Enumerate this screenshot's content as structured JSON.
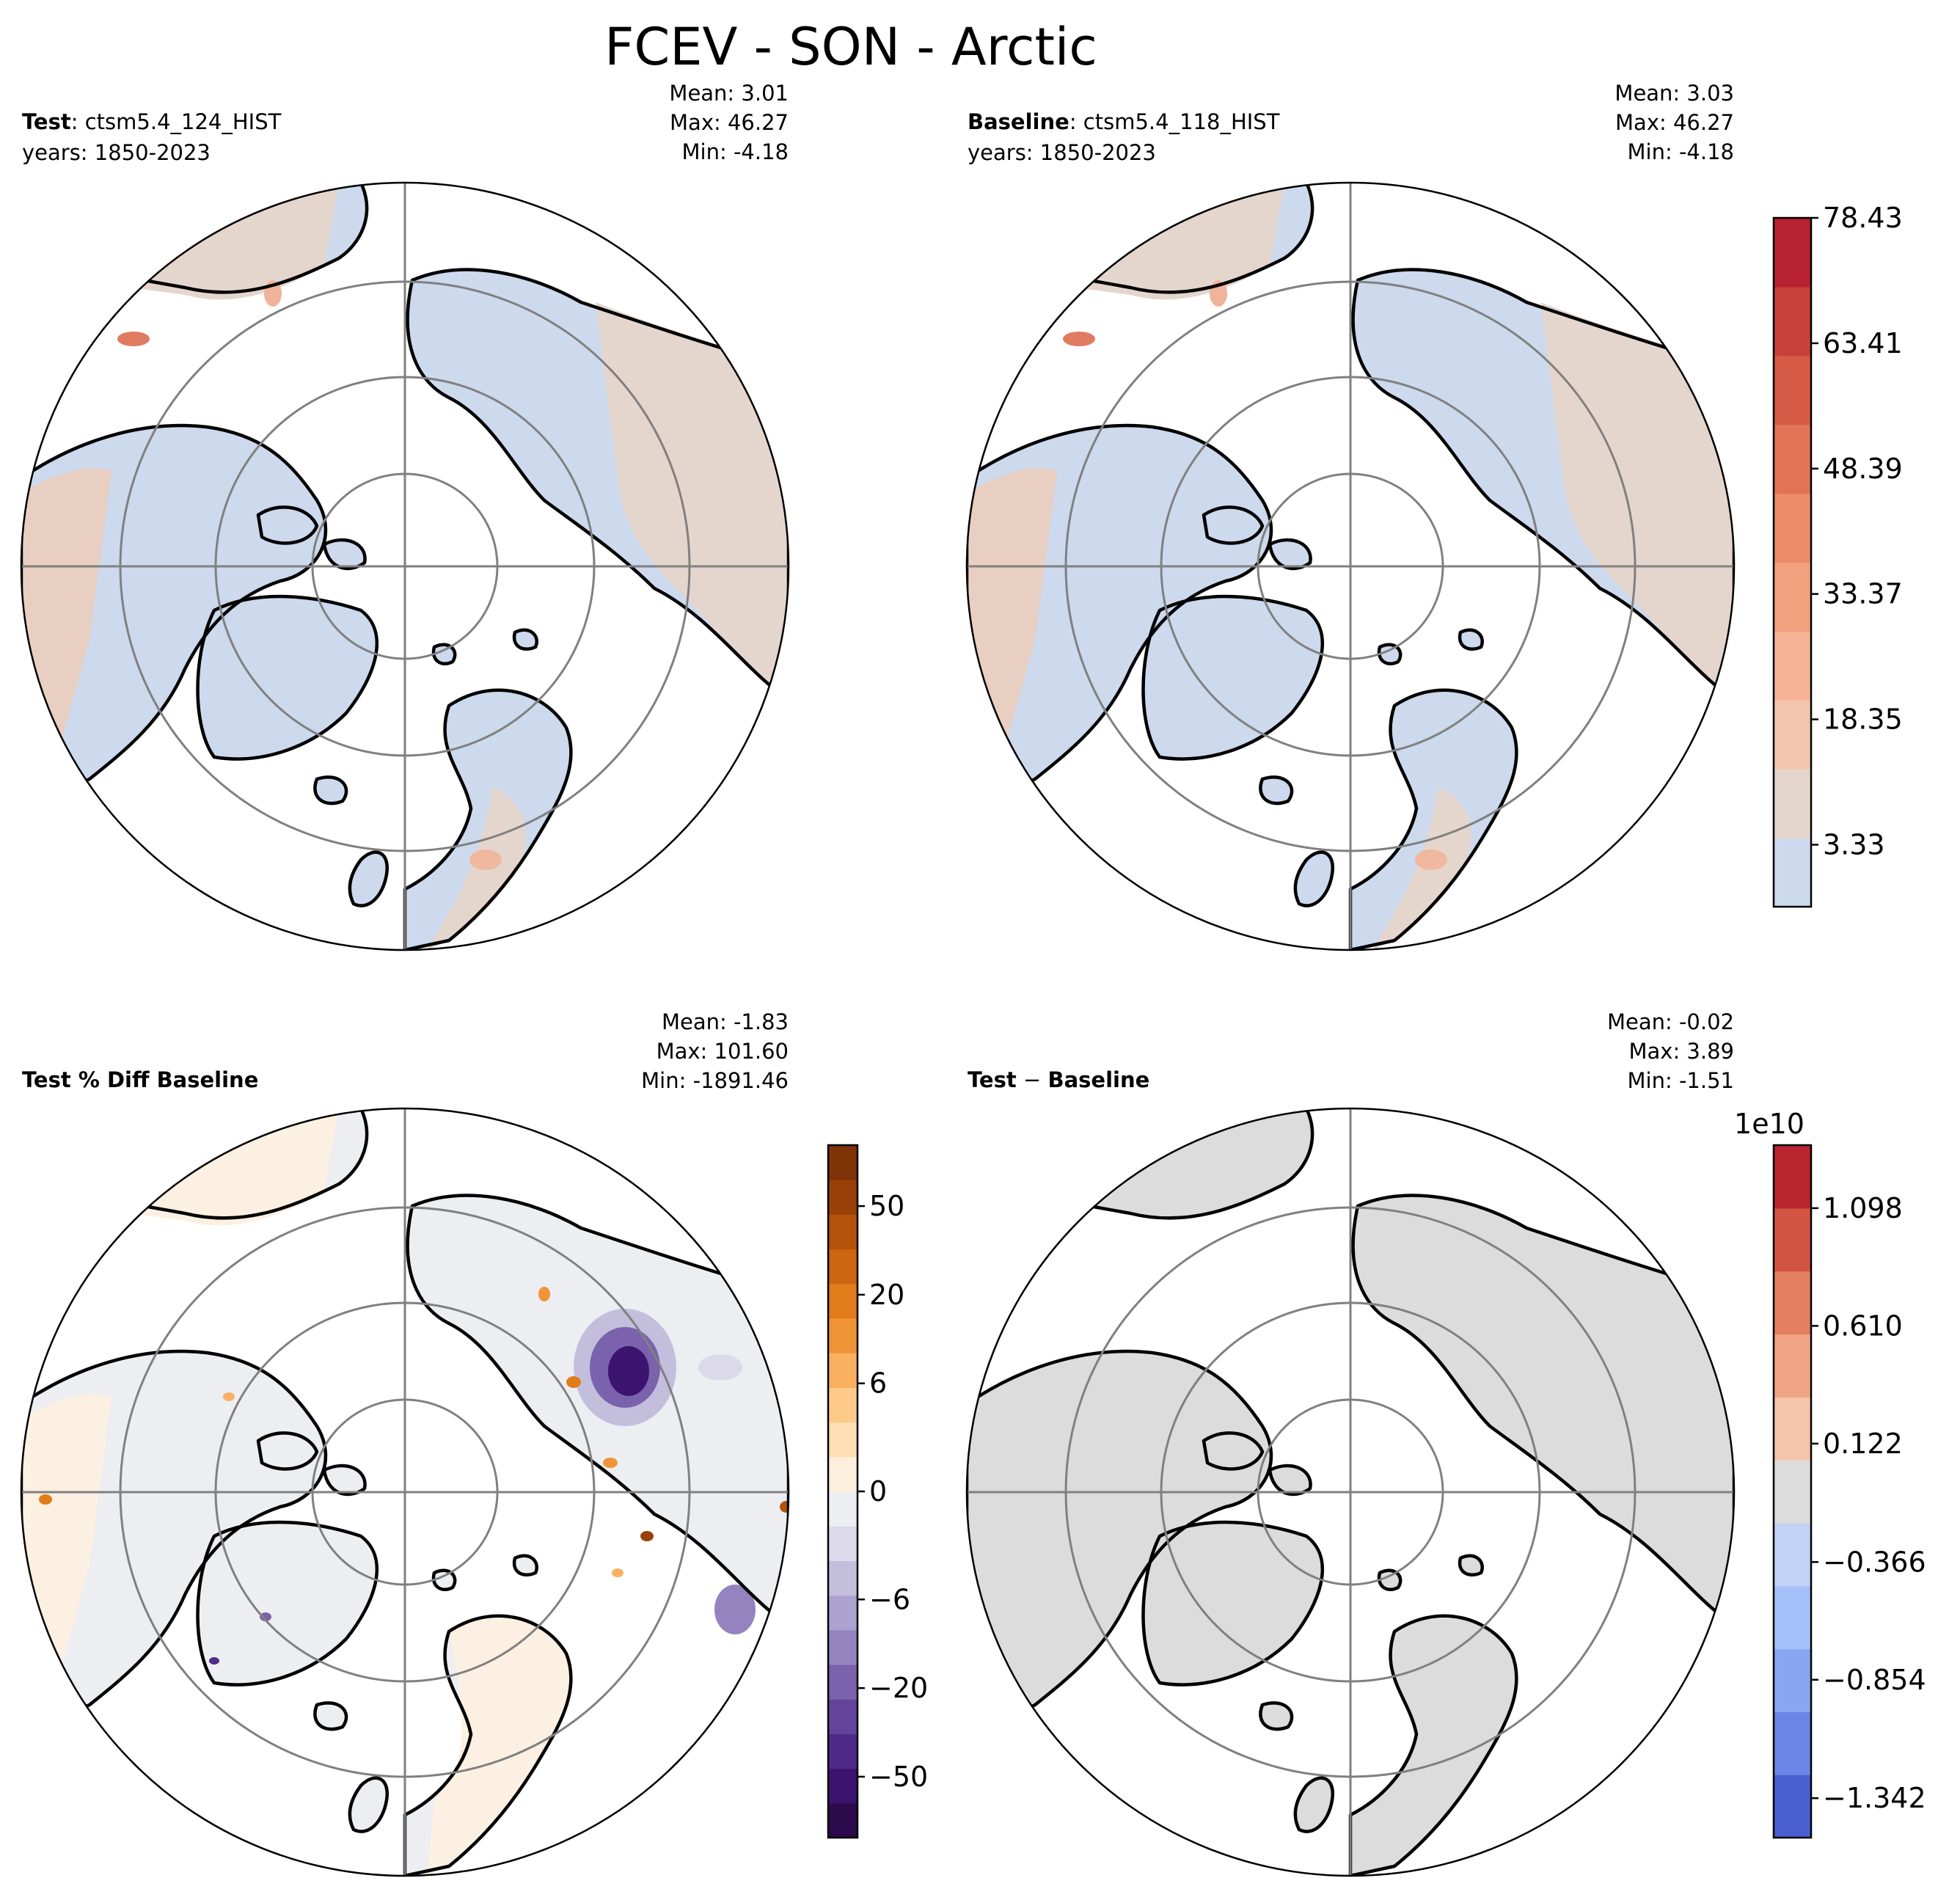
{
  "title": "FCEV - SON - Arctic",
  "colors": {
    "land": "#ffffff",
    "coast": "#000000",
    "grid": "#808080",
    "test_fill": "#cdd9ec",
    "test_warm": "#e5d6cd",
    "test_warm2": "#f0c9b4",
    "pct_fill": "#eceef2",
    "pct_warm": "#fcf0e2",
    "pct_purple": "#4a2886",
    "pct_orange": "#e48a1e",
    "diff_fill": "#dcdcdc"
  },
  "panels": {
    "test": {
      "label_bold": "Test",
      "label_rest": ": ctsm5.4_124_HIST",
      "years": "years: 1850-2023",
      "mean": "Mean:  3.01",
      "max": "Max: 46.27",
      "min": "Min: -4.18"
    },
    "baseline": {
      "label_bold": "Baseline",
      "label_rest": ": ctsm5.4_118_HIST",
      "years": "years: 1850-2023",
      "mean": "Mean:  3.03",
      "max": "Max: 46.27",
      "min": "Min: -4.18"
    },
    "pctdiff": {
      "label_bold": "Test % Diff Baseline",
      "mean": "Mean: -1.83",
      "max": "Max: 101.60",
      "min": "Min: -1891.46"
    },
    "diff": {
      "label_bold": "Test",
      "label_mid": " − ",
      "label_bold2": "Baseline",
      "mean": "Mean: -0.02",
      "max": "Max:  3.89",
      "min": "Min: -1.51"
    }
  },
  "colorbars": {
    "top": {
      "ticks": [
        "78.43",
        "63.41",
        "48.39",
        "33.37",
        "18.35",
        "3.33"
      ],
      "colors": [
        "#cdd9ec",
        "#e5d6cd",
        "#f3c6b0",
        "#f6b496",
        "#f3a17f",
        "#ec8b6a",
        "#e27356",
        "#d65b46",
        "#c8423a",
        "#b82232"
      ]
    },
    "pct": {
      "ticks": [
        "50",
        "20",
        "6",
        "0",
        "−6",
        "−20",
        "−50"
      ],
      "colors": [
        "#2d0a4b",
        "#3c1470",
        "#4f2a88",
        "#63449a",
        "#7a62ac",
        "#9483bf",
        "#ada2cf",
        "#c4bedd",
        "#dcd9ea",
        "#eceef2",
        "#fcefdc",
        "#fedfb4",
        "#fdca8a",
        "#f9b061",
        "#f09438",
        "#e17c1a",
        "#cd6610",
        "#b5520a",
        "#994108",
        "#7f3306"
      ]
    },
    "diff": {
      "multiplier": "1e10",
      "ticks": [
        "1.098",
        "0.610",
        "0.122",
        "−0.366",
        "−0.854",
        "−1.342"
      ],
      "colors": [
        "#4a5fcf",
        "#6b85e6",
        "#89a5f2",
        "#a6c0fa",
        "#c2d3f5",
        "#dcdcdc",
        "#f5c4aa",
        "#f2a585",
        "#e47f61",
        "#d25443",
        "#b9242f"
      ]
    }
  }
}
